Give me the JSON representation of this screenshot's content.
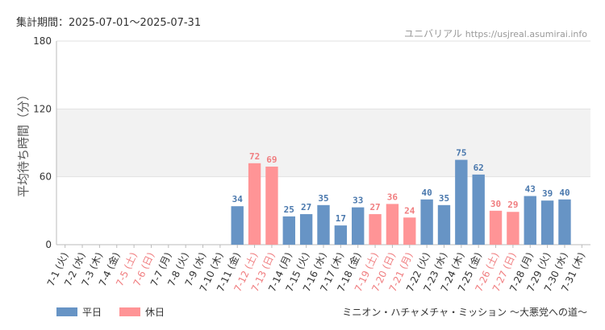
{
  "header": {
    "period": "集計期間：2025-07-01〜2025-07-31",
    "site_name": "ユニバリアル",
    "site_url": "https://usjreal.asumirai.info"
  },
  "footer": {
    "subtitle": "ミニオン・ハチャメチャ・ミッション 〜大悪党への道〜"
  },
  "colors": {
    "weekday": "#6794c5",
    "holiday": "#ff9496",
    "weekday_label": "#4a78ad",
    "holiday_label": "#f07e80"
  },
  "chart_data": {
    "type": "bar",
    "ylabel": "平均待ち時間（分）",
    "ylim": [
      0,
      180
    ],
    "yticks": [
      0,
      60,
      120,
      180
    ],
    "legend": [
      {
        "name": "平日",
        "kind": "weekday"
      },
      {
        "name": "休日",
        "kind": "holiday"
      }
    ],
    "categories": [
      "7-1 (火)",
      "7-2 (水)",
      "7-3 (木)",
      "7-4 (金)",
      "7-5 (土)",
      "7-6 (日)",
      "7-7 (月)",
      "7-8 (火)",
      "7-9 (水)",
      "7-10 (木)",
      "7-11 (金)",
      "7-12 (土)",
      "7-13 (日)",
      "7-14 (月)",
      "7-15 (火)",
      "7-16 (水)",
      "7-17 (木)",
      "7-18 (金)",
      "7-19 (土)",
      "7-20 (日)",
      "7-21 (月)",
      "7-22 (火)",
      "7-23 (水)",
      "7-24 (木)",
      "7-25 (金)",
      "7-26 (土)",
      "7-27 (日)",
      "7-28 (月)",
      "7-29 (火)",
      "7-30 (水)",
      "7-31 (木)"
    ],
    "holiday_flags": [
      false,
      false,
      false,
      false,
      true,
      true,
      false,
      false,
      false,
      false,
      false,
      true,
      true,
      false,
      false,
      false,
      false,
      false,
      true,
      true,
      true,
      false,
      false,
      false,
      false,
      true,
      true,
      false,
      false,
      false,
      false
    ],
    "values": [
      null,
      null,
      null,
      null,
      null,
      null,
      null,
      null,
      null,
      null,
      34,
      72,
      69,
      25,
      27,
      35,
      17,
      33,
      27,
      36,
      24,
      40,
      35,
      75,
      62,
      30,
      29,
      43,
      39,
      40,
      null
    ]
  }
}
